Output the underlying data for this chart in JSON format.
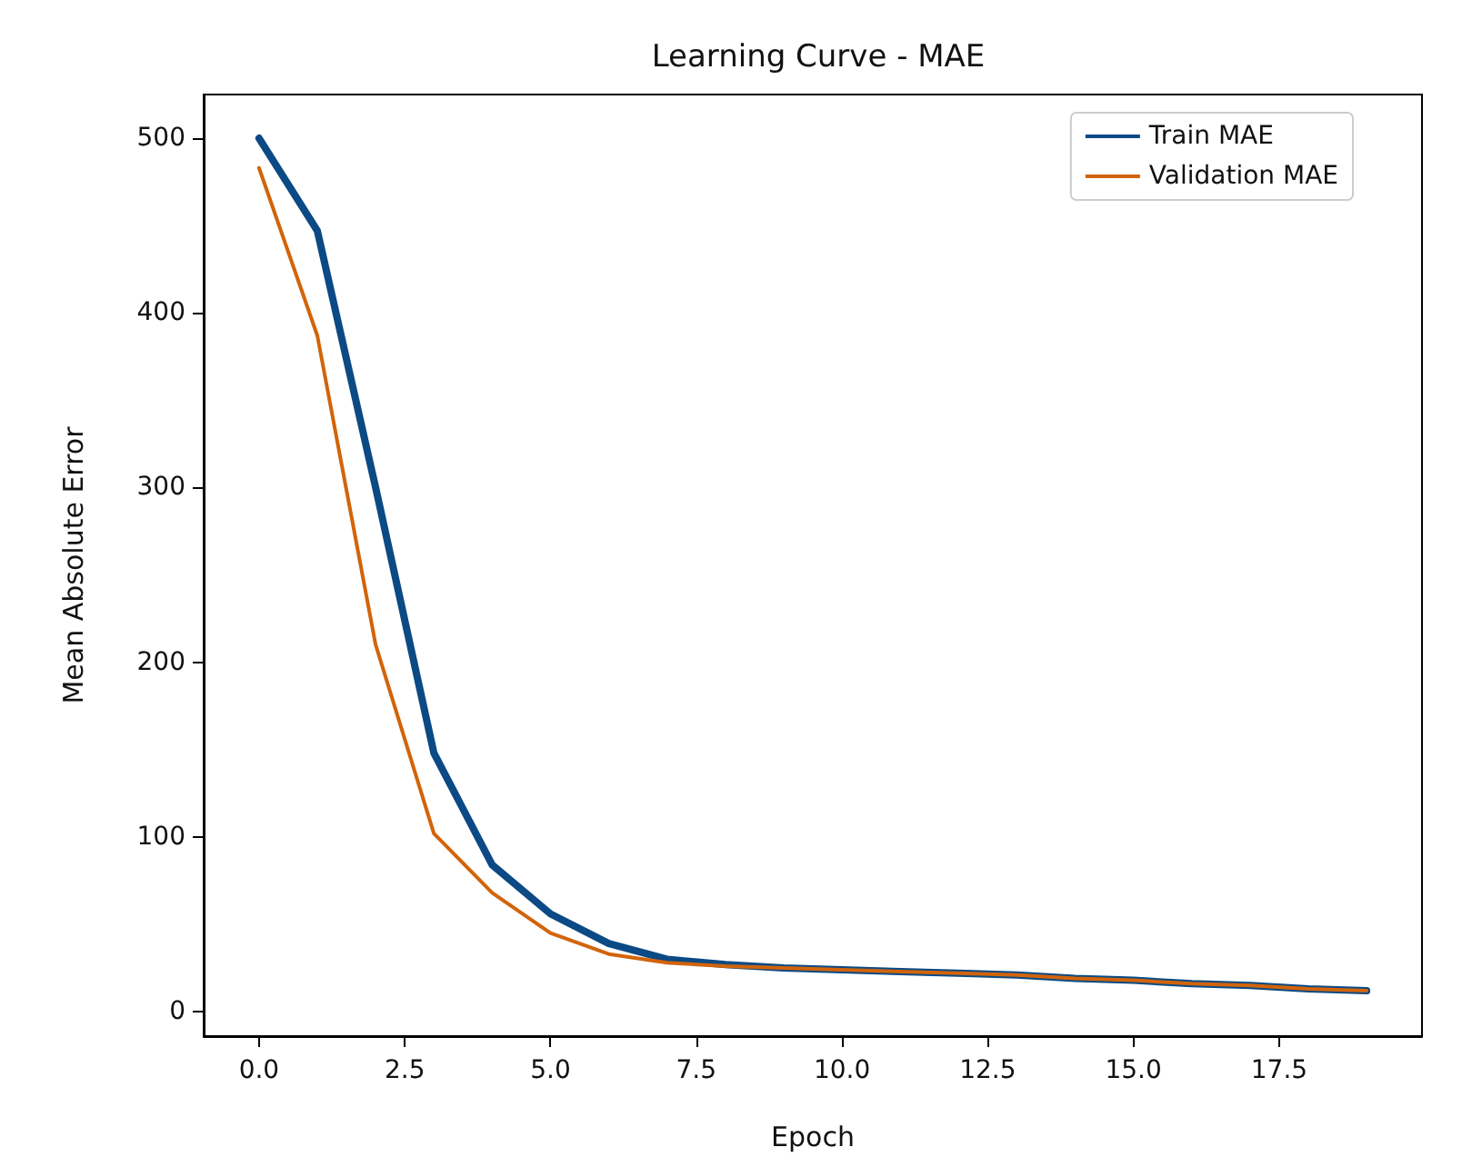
{
  "chart_data": {
    "type": "line",
    "title": "Learning Curve - MAE",
    "xlabel": "Epoch",
    "ylabel": "Mean Absolute Error",
    "x": [
      0,
      1,
      2,
      3,
      4,
      5,
      6,
      7,
      8,
      9,
      10,
      11,
      12,
      13,
      14,
      15,
      16,
      17,
      18,
      19
    ],
    "series": [
      {
        "name": "Train MAE",
        "color": "#0b4a84",
        "values": [
          500,
          447,
          300,
          148,
          84,
          56,
          39,
          30,
          27,
          25,
          24,
          23,
          22,
          21,
          19,
          18,
          16,
          15,
          13,
          12
        ]
      },
      {
        "name": "Validation MAE",
        "color": "#d2640a",
        "values": [
          483,
          387,
          210,
          102,
          68,
          45,
          33,
          28,
          26,
          25,
          24,
          23,
          22,
          21,
          19,
          18,
          16,
          15,
          13,
          12
        ]
      }
    ],
    "xlim": [
      -0.95,
      19.95
    ],
    "ylim": [
      -14,
      525
    ],
    "xticks": [
      {
        "value": 0,
        "label": "0.0"
      },
      {
        "value": 2.5,
        "label": "2.5"
      },
      {
        "value": 5,
        "label": "5.0"
      },
      {
        "value": 7.5,
        "label": "7.5"
      },
      {
        "value": 10,
        "label": "10.0"
      },
      {
        "value": 12.5,
        "label": "12.5"
      },
      {
        "value": 15,
        "label": "15.0"
      },
      {
        "value": 17.5,
        "label": "17.5"
      }
    ],
    "yticks": [
      0,
      100,
      200,
      300,
      400,
      500
    ],
    "grid": false,
    "legend": "top right",
    "marker": "none",
    "line_style": "solid"
  }
}
